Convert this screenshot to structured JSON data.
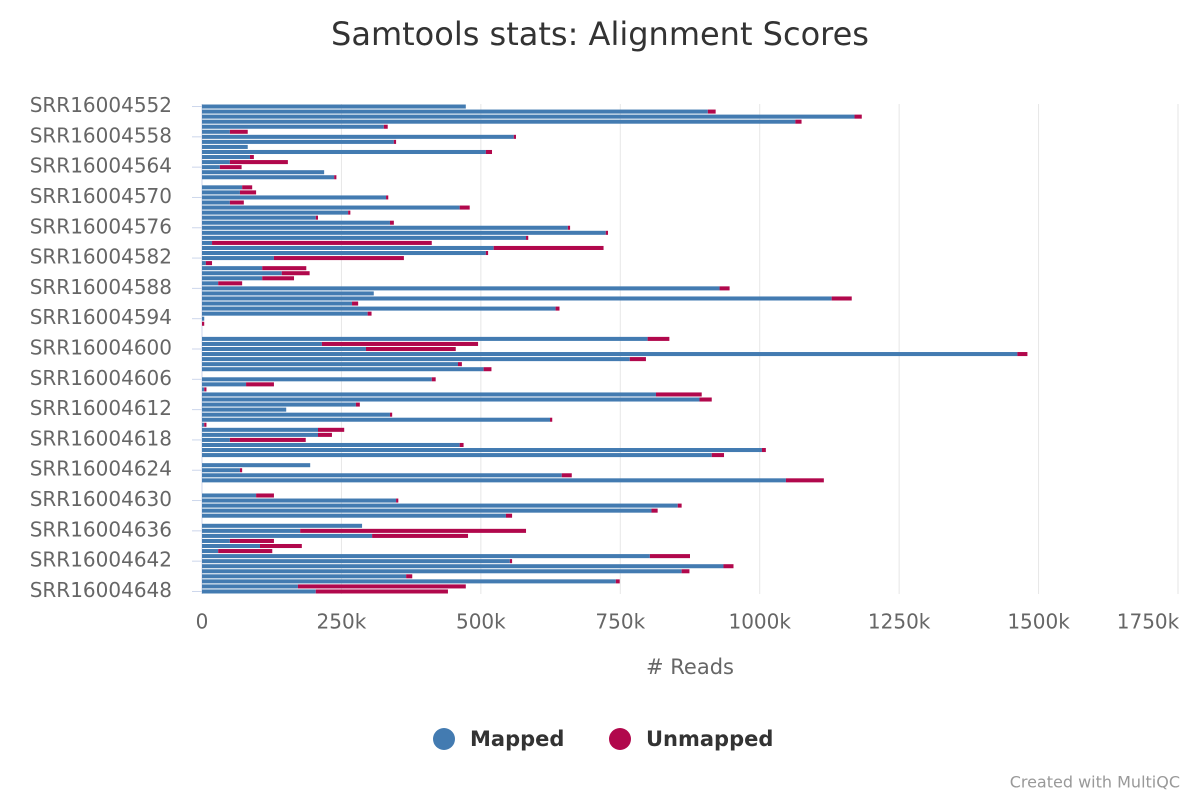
{
  "chart_data": {
    "type": "bar",
    "orientation": "horizontal",
    "stacked": true,
    "title": "Samtools stats: Alignment Scores",
    "x_label": "# Reads",
    "credit": "Created with MultiQC",
    "legend": "bottom",
    "grid": true,
    "xlim": [
      0,
      1750000
    ],
    "xticks": [
      0,
      {
        "value": 250000,
        "label": "250k"
      },
      {
        "value": 500000,
        "label": "500k"
      },
      {
        "value": 750000,
        "label": "750k"
      },
      {
        "value": 1000000,
        "label": "1000k"
      },
      {
        "value": 1250000,
        "label": "1250k"
      },
      {
        "value": 1500000,
        "label": "1500k"
      },
      {
        "value": 1750000,
        "label": "1750k"
      }
    ],
    "categories": [
      "SRR16004552",
      null,
      null,
      null,
      null,
      null,
      "SRR16004558",
      null,
      null,
      null,
      null,
      null,
      "SRR16004564",
      null,
      null,
      null,
      null,
      null,
      "SRR16004570",
      null,
      null,
      null,
      null,
      null,
      "SRR16004576",
      null,
      null,
      null,
      null,
      null,
      "SRR16004582",
      null,
      null,
      null,
      null,
      null,
      "SRR16004588",
      null,
      null,
      null,
      null,
      null,
      "SRR16004594",
      null,
      null,
      null,
      null,
      null,
      "SRR16004600",
      null,
      null,
      null,
      null,
      null,
      "SRR16004606",
      null,
      null,
      null,
      null,
      null,
      "SRR16004612",
      null,
      null,
      null,
      null,
      null,
      "SRR16004618",
      null,
      null,
      null,
      null,
      null,
      "SRR16004624",
      null,
      null,
      null,
      null,
      null,
      "SRR16004630",
      null,
      null,
      null,
      null,
      null,
      "SRR16004636",
      null,
      null,
      null,
      null,
      null,
      "SRR16004642",
      null,
      null,
      null,
      null,
      null,
      "SRR16004648"
    ],
    "series": [
      {
        "name": "Mapped",
        "color": "#437bb1",
        "values": [
          473000,
          907000,
          1170000,
          1064000,
          326000,
          50000,
          559000,
          344000,
          82000,
          509000,
          86000,
          50000,
          32000,
          219000,
          237000,
          0,
          72000,
          68000,
          330000,
          50000,
          462000,
          262000,
          204000,
          337000,
          656000,
          724000,
          581000,
          18000,
          523000,
          509000,
          129000,
          7000,
          108000,
          143000,
          108000,
          29000,
          928000,
          308000,
          1129000,
          269000,
          634000,
          297000,
          4000,
          0,
          0,
          0,
          799000,
          215000,
          294000,
          1462000,
          767000,
          459000,
          505000,
          0,
          412000,
          79000,
          4000,
          814000,
          892000,
          276000,
          151000,
          337000,
          624000,
          4000,
          208000,
          208000,
          50000,
          462000,
          1004000,
          914000,
          0,
          194000,
          68000,
          645000,
          1047000,
          0,
          0,
          97000,
          348000,
          853000,
          806000,
          545000,
          0,
          287000,
          176000,
          305000,
          50000,
          104000,
          29000,
          803000,
          552000,
          935000,
          860000,
          366000,
          742000,
          172000,
          204000
        ]
      },
      {
        "name": "Unmapped",
        "color": "#b1084c",
        "values": [
          0,
          14000,
          13000,
          11000,
          7000,
          32000,
          4000,
          4000,
          0,
          11000,
          7000,
          104000,
          39000,
          0,
          4000,
          0,
          18000,
          29000,
          4000,
          25000,
          18000,
          4000,
          4000,
          7000,
          4000,
          4000,
          4000,
          394000,
          197000,
          4000,
          233000,
          11000,
          79000,
          50000,
          57000,
          43000,
          18000,
          0,
          36000,
          11000,
          7000,
          7000,
          0,
          4000,
          0,
          0,
          39000,
          280000,
          161000,
          18000,
          29000,
          7000,
          14000,
          0,
          7000,
          50000,
          4000,
          82000,
          22000,
          7000,
          0,
          4000,
          4000,
          4000,
          47000,
          25000,
          136000,
          7000,
          7000,
          22000,
          0,
          0,
          4000,
          18000,
          68000,
          0,
          0,
          32000,
          4000,
          7000,
          11000,
          11000,
          0,
          0,
          405000,
          172000,
          79000,
          75000,
          97000,
          72000,
          4000,
          18000,
          14000,
          11000,
          7000,
          301000,
          237000
        ]
      }
    ]
  }
}
